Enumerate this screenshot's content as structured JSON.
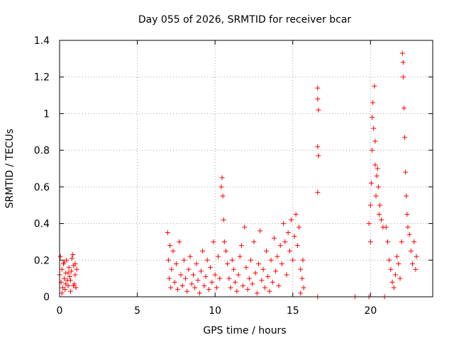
{
  "chart_data": {
    "type": "scatter",
    "title": "Day 055 of 2026, SRMTID for receiver bcar",
    "xlabel": "GPS time / hours",
    "ylabel": "SRMTID / TECUs",
    "xlim": [
      0,
      24
    ],
    "ylim": [
      0,
      1.4
    ],
    "x_ticks": [
      {
        "value": 0,
        "label": "0"
      },
      {
        "value": 5,
        "label": "5"
      },
      {
        "value": 10,
        "label": "10"
      },
      {
        "value": 15,
        "label": "15"
      },
      {
        "value": 20,
        "label": "20"
      }
    ],
    "y_ticks": [
      {
        "value": 0,
        "label": "0"
      },
      {
        "value": 0.2,
        "label": "0.2"
      },
      {
        "value": 0.4,
        "label": "0.4"
      },
      {
        "value": 0.6,
        "label": "0.6"
      },
      {
        "value": 0.8,
        "label": "0.8"
      },
      {
        "value": 1.0,
        "label": "1"
      },
      {
        "value": 1.2,
        "label": "1.2"
      },
      {
        "value": 1.4,
        "label": "1.4"
      }
    ],
    "grid": true,
    "marker": "+",
    "series": [
      {
        "name": "SRMTID",
        "color": "#ff0000",
        "points": [
          [
            0.0,
            0.12
          ],
          [
            0.05,
            0.22
          ],
          [
            0.1,
            0.08
          ],
          [
            0.15,
            0.15
          ],
          [
            0.2,
            0.05
          ],
          [
            0.25,
            0.18
          ],
          [
            0.3,
            0.1
          ],
          [
            0.35,
            0.04
          ],
          [
            0.4,
            0.13
          ],
          [
            0.45,
            0.2
          ],
          [
            0.5,
            0.09
          ],
          [
            0.55,
            0.06
          ],
          [
            0.6,
            0.16
          ],
          [
            0.65,
            0.11
          ],
          [
            0.7,
            0.03
          ],
          [
            0.75,
            0.14
          ],
          [
            0.8,
            0.21
          ],
          [
            0.85,
            0.23
          ],
          [
            0.9,
            0.17
          ],
          [
            0.95,
            0.07
          ],
          [
            1.0,
            0.12
          ],
          [
            1.05,
            0.05
          ],
          [
            1.1,
            0.15
          ],
          [
            0.15,
            0.02
          ],
          [
            0.3,
            0.19
          ],
          [
            0.55,
            0.13
          ],
          [
            0.7,
            0.09
          ],
          [
            0.9,
            0.06
          ],
          [
            1.0,
            0.18
          ],
          [
            0.4,
            0.07
          ],
          [
            6.95,
            0.35
          ],
          [
            7.0,
            0.2
          ],
          [
            7.05,
            0.1
          ],
          [
            7.1,
            0.28
          ],
          [
            7.15,
            0.05
          ],
          [
            7.2,
            0.15
          ],
          [
            7.3,
            0.25
          ],
          [
            7.4,
            0.08
          ],
          [
            7.5,
            0.18
          ],
          [
            7.6,
            0.04
          ],
          [
            7.7,
            0.3
          ],
          [
            7.8,
            0.12
          ],
          [
            7.9,
            0.06
          ],
          [
            8.0,
            0.2
          ],
          [
            8.1,
            0.1
          ],
          [
            8.2,
            0.03
          ],
          [
            8.3,
            0.15
          ],
          [
            8.4,
            0.22
          ],
          [
            8.5,
            0.07
          ],
          [
            8.6,
            0.12
          ],
          [
            8.7,
            0.05
          ],
          [
            8.8,
            0.18
          ],
          [
            8.9,
            0.09
          ],
          [
            9.0,
            0.02
          ],
          [
            9.1,
            0.14
          ],
          [
            9.2,
            0.25
          ],
          [
            9.3,
            0.06
          ],
          [
            9.4,
            0.11
          ],
          [
            9.5,
            0.2
          ],
          [
            9.6,
            0.04
          ],
          [
            9.7,
            0.16
          ],
          [
            9.8,
            0.08
          ],
          [
            9.9,
            0.3
          ],
          [
            10.0,
            0.12
          ],
          [
            10.1,
            0.05
          ],
          [
            10.2,
            0.22
          ],
          [
            10.3,
            0.1
          ],
          [
            10.4,
            0.6
          ],
          [
            10.45,
            0.65
          ],
          [
            10.5,
            0.55
          ],
          [
            10.55,
            0.42
          ],
          [
            10.6,
            0.3
          ],
          [
            10.7,
            0.25
          ],
          [
            10.8,
            0.18
          ],
          [
            10.9,
            0.1
          ],
          [
            11.0,
            0.05
          ],
          [
            11.1,
            0.2
          ],
          [
            11.2,
            0.15
          ],
          [
            11.3,
            0.08
          ],
          [
            11.4,
            0.03
          ],
          [
            11.5,
            0.12
          ],
          [
            11.6,
            0.22
          ],
          [
            11.7,
            0.28
          ],
          [
            11.8,
            0.06
          ],
          [
            11.9,
            0.38
          ],
          [
            12.0,
            0.16
          ],
          [
            12.1,
            0.04
          ],
          [
            12.2,
            0.1
          ],
          [
            12.3,
            0.2
          ],
          [
            12.4,
            0.07
          ],
          [
            12.5,
            0.3
          ],
          [
            12.6,
            0.13
          ],
          [
            12.7,
            0.02
          ],
          [
            12.8,
            0.18
          ],
          [
            12.9,
            0.36
          ],
          [
            13.0,
            0.09
          ],
          [
            13.1,
            0.15
          ],
          [
            13.2,
            0.05
          ],
          [
            13.3,
            0.25
          ],
          [
            13.4,
            0.11
          ],
          [
            13.5,
            0.03
          ],
          [
            13.6,
            0.2
          ],
          [
            13.7,
            0.08
          ],
          [
            13.8,
            0.32
          ],
          [
            13.9,
            0.14
          ],
          [
            14.0,
            0.22
          ],
          [
            14.1,
            0.06
          ],
          [
            14.2,
            0.28
          ],
          [
            14.3,
            0.18
          ],
          [
            14.4,
            0.4
          ],
          [
            14.5,
            0.3
          ],
          [
            14.6,
            0.12
          ],
          [
            14.7,
            0.35
          ],
          [
            14.8,
            0.25
          ],
          [
            14.9,
            0.42
          ],
          [
            15.0,
            0.2
          ],
          [
            15.1,
            0.33
          ],
          [
            15.2,
            0.45
          ],
          [
            15.3,
            0.28
          ],
          [
            15.4,
            0.38
          ],
          [
            15.5,
            0.15
          ],
          [
            15.6,
            0.1
          ],
          [
            15.65,
            0.2
          ],
          [
            15.7,
            0.05
          ],
          [
            15.5,
            0.02
          ],
          [
            16.6,
            1.14
          ],
          [
            16.6,
            1.08
          ],
          [
            16.65,
            1.02
          ],
          [
            16.6,
            0.82
          ],
          [
            16.65,
            0.77
          ],
          [
            16.6,
            0.57
          ],
          [
            16.6,
            0.0
          ],
          [
            19.0,
            0.0
          ],
          [
            19.9,
            0.0
          ],
          [
            19.9,
            0.4
          ],
          [
            20.0,
            0.5
          ],
          [
            20.0,
            0.3
          ],
          [
            20.05,
            0.62
          ],
          [
            20.1,
            0.8
          ],
          [
            20.1,
            0.98
          ],
          [
            20.15,
            1.06
          ],
          [
            20.2,
            0.92
          ],
          [
            20.25,
            1.15
          ],
          [
            20.3,
            0.85
          ],
          [
            20.3,
            0.72
          ],
          [
            20.35,
            0.55
          ],
          [
            20.4,
            0.66
          ],
          [
            20.45,
            0.7
          ],
          [
            20.5,
            0.6
          ],
          [
            20.55,
            0.45
          ],
          [
            20.6,
            0.5
          ],
          [
            20.7,
            0.42
          ],
          [
            20.8,
            0.38
          ],
          [
            20.9,
            0.0
          ],
          [
            21.0,
            0.38
          ],
          [
            21.1,
            0.3
          ],
          [
            21.2,
            0.2
          ],
          [
            21.3,
            0.15
          ],
          [
            21.4,
            0.08
          ],
          [
            21.5,
            0.05
          ],
          [
            21.6,
            0.12
          ],
          [
            21.7,
            0.22
          ],
          [
            21.8,
            0.18
          ],
          [
            21.9,
            0.1
          ],
          [
            22.0,
            0.3
          ],
          [
            22.05,
            1.33
          ],
          [
            22.1,
            1.28
          ],
          [
            22.1,
            1.2
          ],
          [
            22.15,
            1.03
          ],
          [
            22.2,
            0.87
          ],
          [
            22.25,
            0.68
          ],
          [
            22.3,
            0.55
          ],
          [
            22.35,
            0.45
          ],
          [
            22.4,
            0.38
          ],
          [
            22.5,
            0.34
          ],
          [
            22.6,
            0.25
          ],
          [
            22.7,
            0.18
          ],
          [
            22.8,
            0.3
          ],
          [
            22.9,
            0.15
          ],
          [
            22.95,
            0.22
          ]
        ]
      }
    ]
  }
}
